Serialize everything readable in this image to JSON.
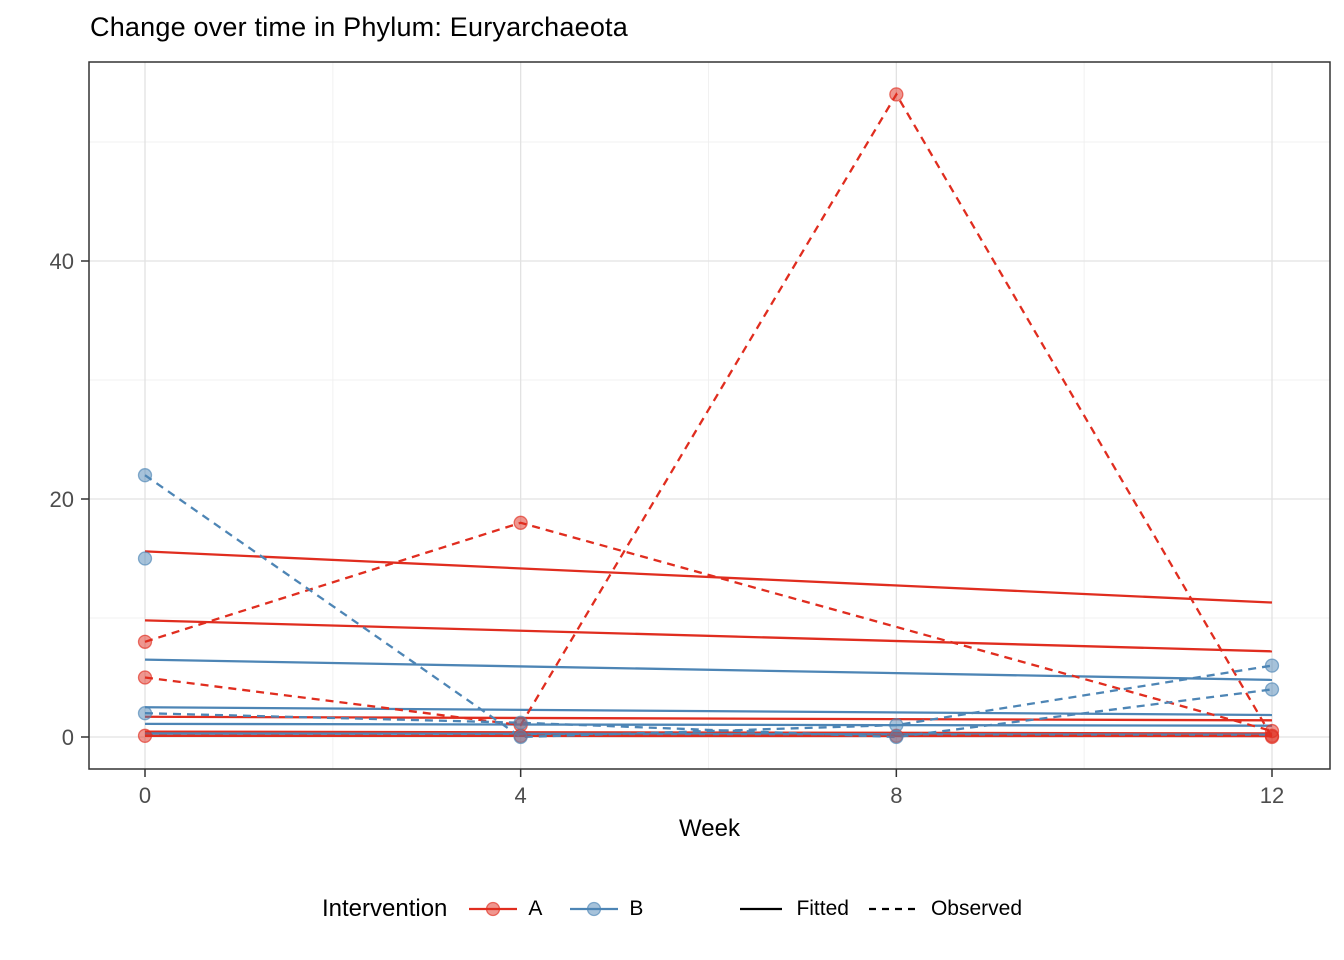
{
  "chart_data": {
    "type": "line",
    "title": "Change over time in Phylum: Euryarchaeota",
    "xlabel": "Week",
    "xtick_values": [
      0,
      4,
      8,
      12
    ],
    "xtick_labels": [
      "0",
      "4",
      "8",
      "12"
    ],
    "ytick_values": [
      0,
      20,
      40
    ],
    "ytick_labels": [
      "0",
      "20",
      "40"
    ],
    "x_minor": [
      2,
      6,
      10
    ],
    "y_minor": [
      10,
      30,
      50
    ],
    "xlim": [
      -0.6,
      12.6
    ],
    "ylim": [
      -2.7,
      56.7
    ],
    "grid": "on",
    "legend_position": "bottom",
    "colors": {
      "group_a": "#E02D1F",
      "group_b": "#4D85B5",
      "linetype_key": "#000000",
      "grid_major": "#e2e2e2",
      "grid_minor": "#f0f0f0",
      "panel_border": "#333333",
      "axis_text": "#4d4d4d"
    },
    "legend": {
      "title": "Intervention",
      "groups": [
        {
          "label": "A",
          "color": "#E02D1F"
        },
        {
          "label": "B",
          "color": "#4D85B5"
        }
      ],
      "linetypes": [
        {
          "label": "Fitted",
          "style": "solid"
        },
        {
          "label": "Observed",
          "style": "dashed"
        }
      ]
    },
    "series": [
      {
        "name": "A-fitted-1",
        "group": "A",
        "kind": "fitted",
        "points": [
          [
            0,
            15.6
          ],
          [
            12,
            11.3
          ]
        ]
      },
      {
        "name": "A-fitted-2",
        "group": "A",
        "kind": "fitted",
        "points": [
          [
            0,
            9.8
          ],
          [
            12,
            7.2
          ]
        ]
      },
      {
        "name": "A-fitted-3",
        "group": "A",
        "kind": "fitted",
        "points": [
          [
            0,
            1.7
          ],
          [
            12,
            1.4
          ]
        ]
      },
      {
        "name": "A-fitted-4",
        "group": "A",
        "kind": "fitted",
        "points": [
          [
            0,
            0.45
          ],
          [
            12,
            0.3
          ]
        ]
      },
      {
        "name": "A-fitted-5",
        "group": "A",
        "kind": "fitted",
        "points": [
          [
            0,
            0.1
          ],
          [
            12,
            0.08
          ]
        ]
      },
      {
        "name": "B-fitted-1",
        "group": "B",
        "kind": "fitted",
        "points": [
          [
            0,
            6.5
          ],
          [
            12,
            4.8
          ]
        ]
      },
      {
        "name": "B-fitted-2",
        "group": "B",
        "kind": "fitted",
        "points": [
          [
            0,
            2.5
          ],
          [
            12,
            1.85
          ]
        ]
      },
      {
        "name": "B-fitted-3",
        "group": "B",
        "kind": "fitted",
        "points": [
          [
            0,
            1.1
          ],
          [
            12,
            0.95
          ]
        ]
      },
      {
        "name": "B-fitted-4",
        "group": "B",
        "kind": "fitted",
        "points": [
          [
            0,
            0.3
          ],
          [
            12,
            0.2
          ]
        ]
      },
      {
        "name": "A-observed-1",
        "group": "A",
        "kind": "observed",
        "points": [
          [
            0,
            8
          ],
          [
            4,
            18
          ],
          [
            12,
            0.5
          ]
        ]
      },
      {
        "name": "A-observed-2",
        "group": "A",
        "kind": "observed",
        "points": [
          [
            0,
            5
          ],
          [
            4,
            1
          ],
          [
            8,
            54
          ],
          [
            12,
            0
          ]
        ]
      },
      {
        "name": "A-observed-3",
        "group": "A",
        "kind": "observed",
        "points": [
          [
            0,
            0.1
          ],
          [
            4,
            0.1
          ],
          [
            8,
            0.1
          ],
          [
            12,
            0.1
          ]
        ]
      },
      {
        "name": "B-observed-1",
        "group": "B",
        "kind": "observed",
        "points": [
          [
            0,
            22
          ],
          [
            4,
            0
          ],
          [
            8,
            1
          ],
          [
            12,
            6
          ]
        ]
      },
      {
        "name": "B-observed-2",
        "group": "B",
        "kind": "observed",
        "points": [
          [
            0,
            15
          ]
        ]
      },
      {
        "name": "B-observed-3",
        "group": "B",
        "kind": "observed",
        "points": [
          [
            0,
            2
          ],
          [
            4,
            1.2
          ],
          [
            8,
            0
          ],
          [
            12,
            4
          ]
        ]
      }
    ]
  }
}
